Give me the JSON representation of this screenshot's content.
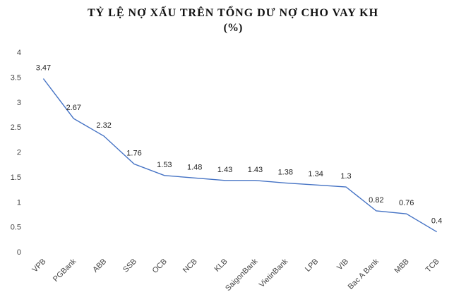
{
  "chart_data": {
    "type": "line",
    "title": "TỶ LỆ NỢ XẤU TRÊN TỔNG DƯ NỢ CHO VAY KH",
    "subtitle": "(%)",
    "categories": [
      "VPB",
      "PGBank",
      "ABB",
      "SSB",
      "OCB",
      "NCB",
      "KLB",
      "SaigonBank",
      "VietinBank",
      "LPB",
      "VIB",
      "Bac A Bank",
      "MBB",
      "TCB"
    ],
    "values": [
      3.47,
      2.67,
      2.32,
      1.76,
      1.53,
      1.48,
      1.43,
      1.43,
      1.38,
      1.34,
      1.3,
      0.82,
      0.76,
      0.4
    ],
    "data_labels": [
      "3.47",
      "2.67",
      "2.32",
      "1.76",
      "1.53",
      "1.48",
      "1.43",
      "1.43",
      "1.38",
      "1.34",
      "1.3",
      "0.82",
      "0.76",
      "0.4"
    ],
    "ylim": [
      0,
      4
    ],
    "yticks": [
      "0",
      "0.5",
      "1",
      "1.5",
      "2",
      "2.5",
      "3",
      "3.5",
      "4"
    ],
    "xlabel": "",
    "ylabel": "",
    "legend": "none",
    "grid": false,
    "line_color": "#4472C4"
  }
}
